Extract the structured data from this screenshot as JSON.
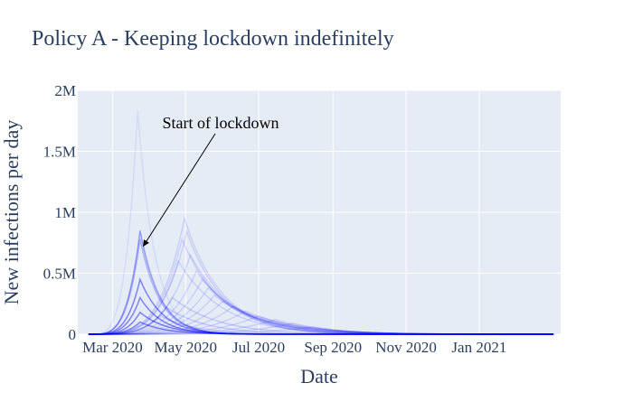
{
  "chart_data": {
    "type": "line",
    "title": "Policy A - Keeping lockdown indefinitely",
    "xlabel": "Date",
    "ylabel": "New infections per day",
    "x_ticks": [
      "Mar 2020",
      "May 2020",
      "Jul 2020",
      "Sep 2020",
      "Nov 2020",
      "Jan 2021"
    ],
    "x_tick_dates": [
      "2020-03-01",
      "2020-05-01",
      "2020-07-01",
      "2020-09-01",
      "2020-11-01",
      "2021-01-01"
    ],
    "xlim": [
      "2020-02-01",
      "2021-03-10"
    ],
    "y_ticks": [
      "0",
      "0.5M",
      "1M",
      "1.5M",
      "2M"
    ],
    "y_tick_values": [
      0,
      500000,
      1000000,
      1500000,
      2000000
    ],
    "ylim": [
      0,
      2000000
    ],
    "grid": true,
    "legend": "none",
    "plot_background": "#e5ecf6",
    "series_color": "#0000ff",
    "annotation": {
      "text": "Start of lockdown",
      "date": "2020-03-25",
      "value": 690000
    },
    "series": [
      {
        "peak_date": "2020-03-22",
        "peak_value": 1830000,
        "end_date": "2020-06-15",
        "opacity": 0.07
      },
      {
        "peak_date": "2020-03-24",
        "peak_value": 850000,
        "end_date": "2020-07-01",
        "opacity": 0.35
      },
      {
        "peak_date": "2020-03-24",
        "peak_value": 780000,
        "end_date": "2020-07-01",
        "opacity": 0.25
      },
      {
        "peak_date": "2020-03-24",
        "peak_value": 450000,
        "end_date": "2020-07-15",
        "opacity": 0.45
      },
      {
        "peak_date": "2020-03-24",
        "peak_value": 300000,
        "end_date": "2020-07-15",
        "opacity": 0.45
      },
      {
        "peak_date": "2020-03-24",
        "peak_value": 180000,
        "end_date": "2020-08-01",
        "opacity": 0.45
      },
      {
        "peak_date": "2020-03-24",
        "peak_value": 100000,
        "end_date": "2020-08-01",
        "opacity": 0.45
      },
      {
        "peak_date": "2020-04-30",
        "peak_value": 950000,
        "end_date": "2020-11-01",
        "opacity": 0.12
      },
      {
        "peak_date": "2020-05-02",
        "peak_value": 840000,
        "end_date": "2020-11-01",
        "opacity": 0.12
      },
      {
        "peak_date": "2020-04-28",
        "peak_value": 780000,
        "end_date": "2020-11-15",
        "opacity": 0.12
      },
      {
        "peak_date": "2020-05-05",
        "peak_value": 650000,
        "end_date": "2020-12-01",
        "opacity": 0.12
      },
      {
        "peak_date": "2020-04-25",
        "peak_value": 600000,
        "end_date": "2020-12-01",
        "opacity": 0.12
      },
      {
        "peak_date": "2020-05-10",
        "peak_value": 520000,
        "end_date": "2020-12-15",
        "opacity": 0.12
      },
      {
        "peak_date": "2020-05-15",
        "peak_value": 450000,
        "end_date": "2021-01-01",
        "opacity": 0.12
      },
      {
        "peak_date": "2020-05-20",
        "peak_value": 380000,
        "end_date": "2021-01-15",
        "opacity": 0.12
      },
      {
        "peak_date": "2020-05-25",
        "peak_value": 320000,
        "end_date": "2021-01-15",
        "opacity": 0.12
      },
      {
        "peak_date": "2020-06-01",
        "peak_value": 270000,
        "end_date": "2021-02-01",
        "opacity": 0.12
      },
      {
        "peak_date": "2020-06-10",
        "peak_value": 230000,
        "end_date": "2021-02-15",
        "opacity": 0.12
      },
      {
        "peak_date": "2020-06-20",
        "peak_value": 190000,
        "end_date": "2021-03-01",
        "opacity": 0.12
      },
      {
        "peak_date": "2020-07-01",
        "peak_value": 150000,
        "end_date": "2021-03-01",
        "opacity": 0.12
      },
      {
        "peak_date": "2020-07-15",
        "peak_value": 120000,
        "end_date": "2021-03-05",
        "opacity": 0.12
      },
      {
        "peak_date": "2020-07-30",
        "peak_value": 90000,
        "end_date": "2021-03-05",
        "opacity": 0.12
      },
      {
        "peak_date": "2020-08-15",
        "peak_value": 60000,
        "end_date": "2021-03-05",
        "opacity": 0.12
      },
      {
        "peak_date": "2020-04-20",
        "peak_value": 300000,
        "end_date": "2020-12-01",
        "opacity": 0.15
      },
      {
        "peak_date": "2020-04-15",
        "peak_value": 220000,
        "end_date": "2020-11-01",
        "opacity": 0.15
      },
      {
        "peak_date": "2020-04-10",
        "peak_value": 150000,
        "end_date": "2020-10-01",
        "opacity": 0.15
      }
    ]
  }
}
